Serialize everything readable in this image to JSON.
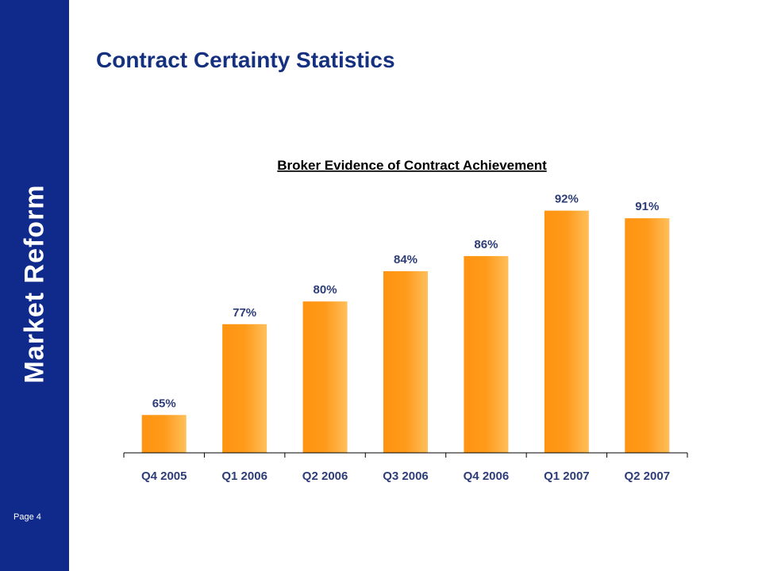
{
  "sidebar": {
    "title": "Market Reform",
    "page_label": "Page 4"
  },
  "slide": {
    "title": "Contract Certainty Statistics"
  },
  "colors": {
    "sidebar": "#0f2a8a",
    "title": "#14307f",
    "bar": "#ff9a1a",
    "bar_light": "#ffc060",
    "label": "#2d3d78"
  },
  "chart_data": {
    "type": "bar",
    "title": "Broker Evidence of Contract Achievement",
    "categories": [
      "Q4 2005",
      "Q1 2006",
      "Q2 2006",
      "Q3 2006",
      "Q4 2006",
      "Q1 2007",
      "Q2 2007"
    ],
    "values": [
      65,
      77,
      80,
      84,
      86,
      92,
      91
    ],
    "value_labels": [
      "65%",
      "77%",
      "80%",
      "84%",
      "86%",
      "92%",
      "91%"
    ],
    "value_unit": "%",
    "ylim": [
      60,
      95
    ],
    "grid": false,
    "legend": "none"
  }
}
